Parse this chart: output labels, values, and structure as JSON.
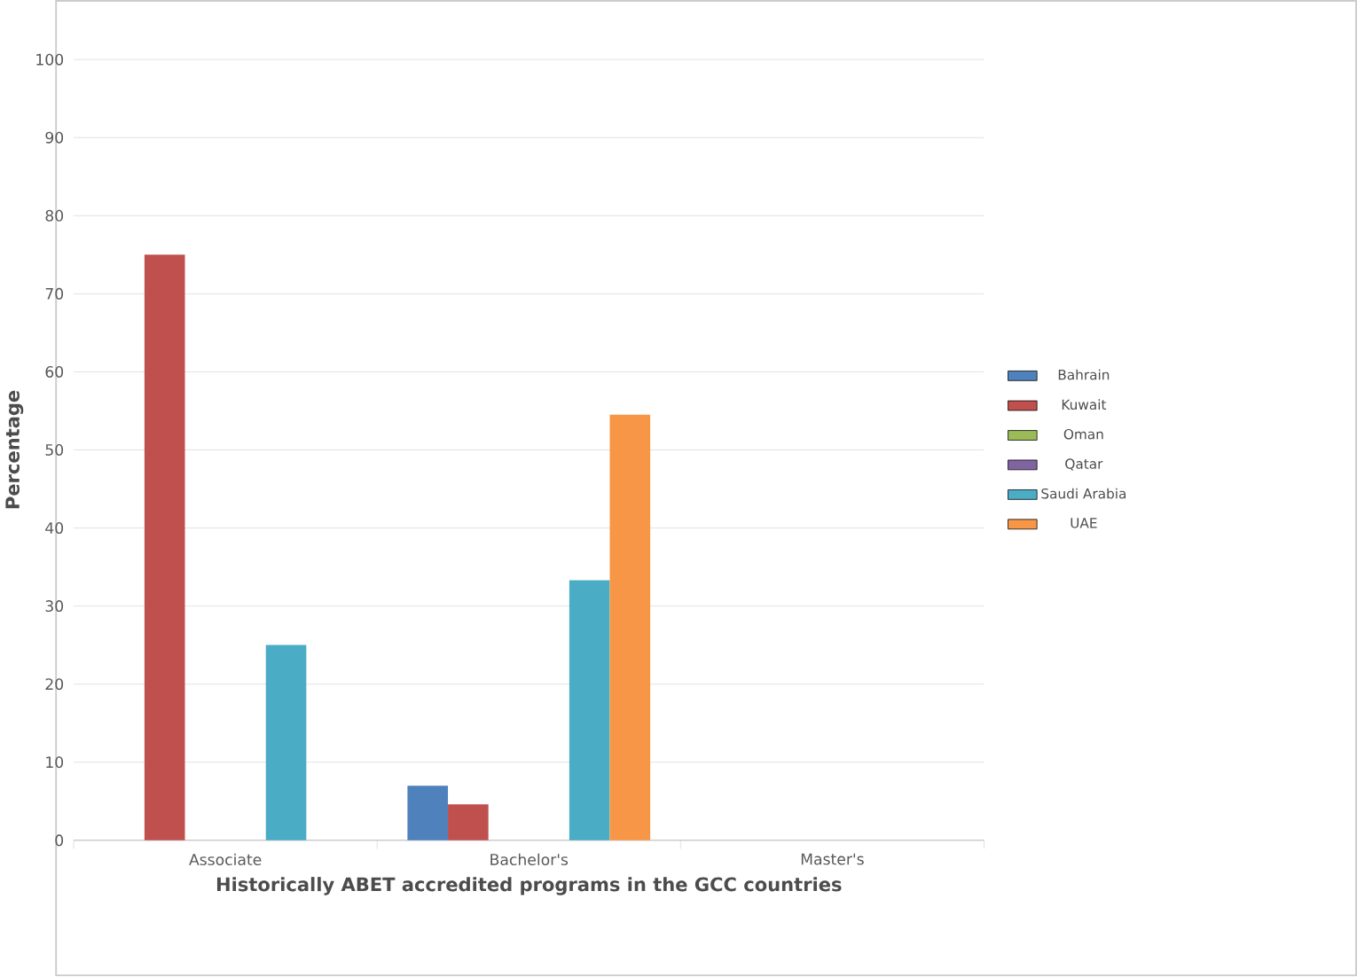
{
  "chart_data": {
    "type": "bar",
    "xlabel": "Historically ABET accredited programs in the GCC countries",
    "ylabel": "Percentage",
    "categories": [
      "Associate",
      "Bachelor's",
      "Master's"
    ],
    "series": [
      {
        "name": "Bahrain",
        "color": "#4f81bd",
        "values": [
          0,
          7,
          0
        ]
      },
      {
        "name": "Kuwait",
        "color": "#c0504d",
        "values": [
          75,
          4.6,
          0
        ]
      },
      {
        "name": "Oman",
        "color": "#9bbb59",
        "values": [
          0,
          0,
          0
        ]
      },
      {
        "name": "Qatar",
        "color": "#8064a2",
        "values": [
          0,
          0,
          0
        ]
      },
      {
        "name": "Saudi Arabia",
        "color": "#4bacc6",
        "values": [
          25,
          33.3,
          0
        ]
      },
      {
        "name": "UAE",
        "color": "#f79646",
        "values": [
          0,
          54.5,
          0
        ]
      }
    ],
    "ylim": [
      0,
      100
    ],
    "yticks": [
      0,
      10,
      20,
      30,
      40,
      50,
      60,
      70,
      80,
      90,
      100
    ],
    "grid": "y",
    "legend": "right"
  }
}
